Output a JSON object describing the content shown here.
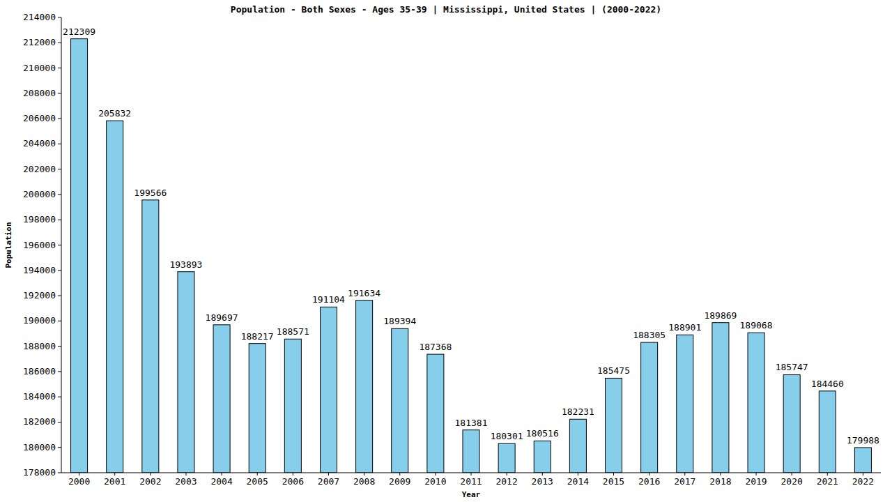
{
  "chart_data": {
    "type": "bar",
    "title": "Population - Both Sexes - Ages 35-39 | Mississippi, United States |  (2000-2022)",
    "x_label": "Year",
    "y_label": "Population",
    "categories": [
      "2000",
      "2001",
      "2002",
      "2003",
      "2004",
      "2005",
      "2006",
      "2007",
      "2008",
      "2009",
      "2010",
      "2011",
      "2012",
      "2013",
      "2014",
      "2015",
      "2016",
      "2017",
      "2018",
      "2019",
      "2020",
      "2021",
      "2022"
    ],
    "values": [
      212309,
      205832,
      199566,
      193893,
      189697,
      188217,
      188571,
      191104,
      191634,
      189394,
      187368,
      181381,
      180301,
      180516,
      182231,
      185475,
      188305,
      188901,
      189869,
      189068,
      185747,
      184460,
      179988
    ],
    "color": "#87ceeb",
    "ylim": [
      178000,
      214000
    ],
    "yticks": [
      178000,
      180000,
      182000,
      184000,
      186000,
      188000,
      190000,
      192000,
      194000,
      196000,
      198000,
      200000,
      202000,
      204000,
      206000,
      208000,
      210000,
      212000,
      214000
    ],
    "grid": false,
    "data_labels": true
  }
}
